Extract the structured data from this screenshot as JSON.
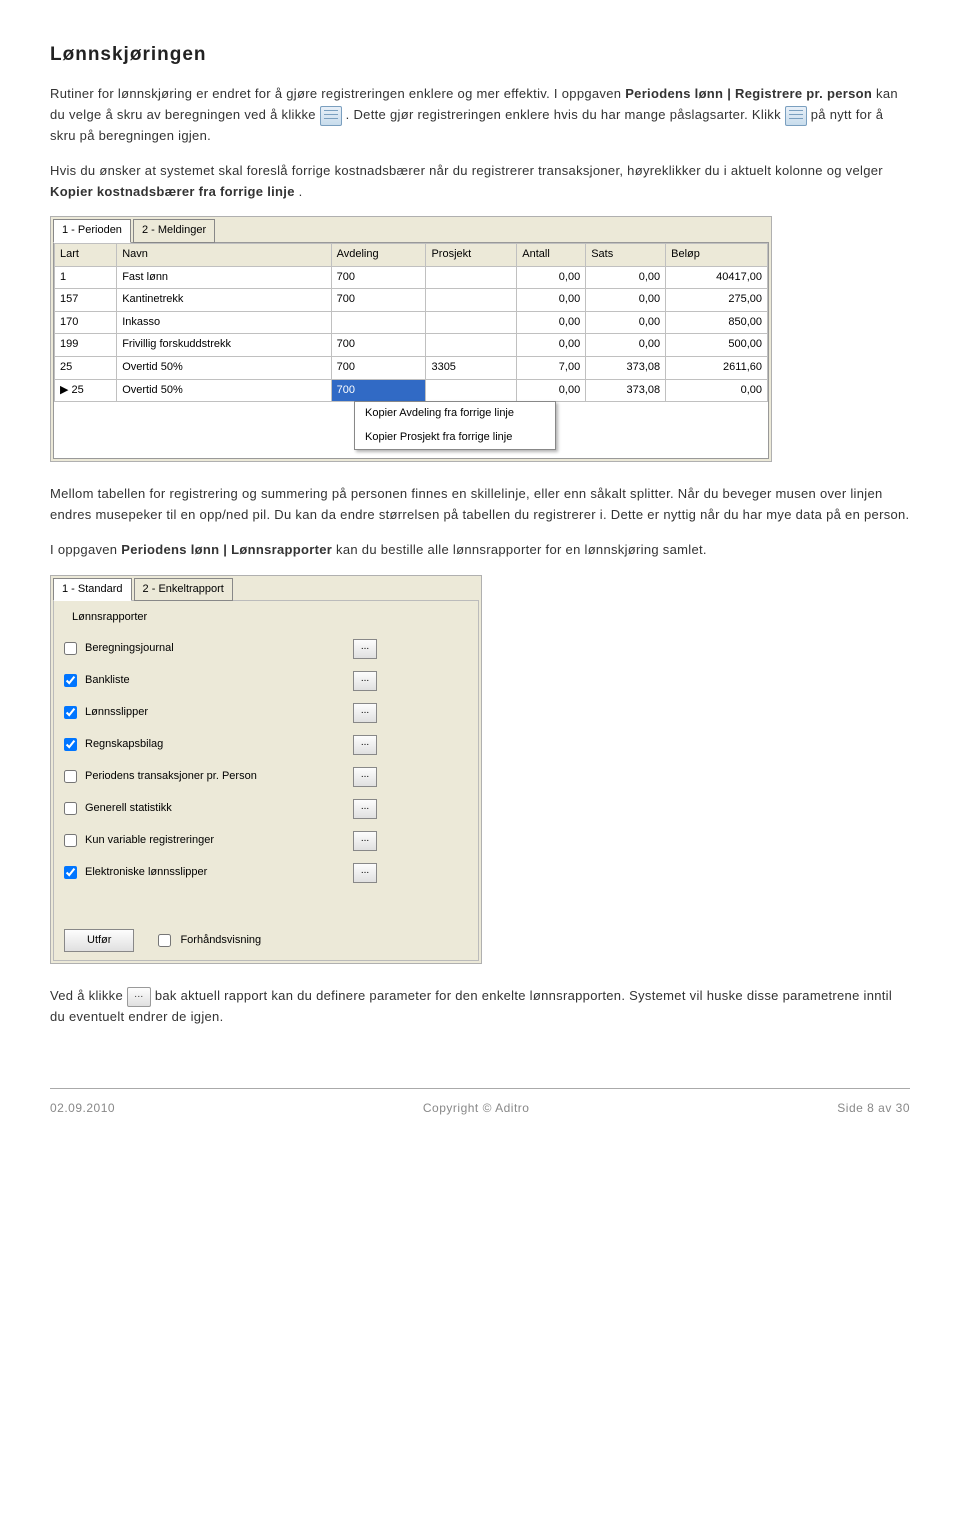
{
  "heading": "Lønnskjøringen",
  "para1_a": "Rutiner for lønnskjøring er endret for å gjøre registreringen enklere og mer effektiv. I oppgaven ",
  "para1_b": "Periodens lønn | Registrere pr. person",
  "para1_c": " kan du velge å skru av beregningen ved å klikke ",
  "para1_d": ". Dette gjør registreringen enklere hvis du har mange påslagsarter. Klikk ",
  "para1_e": " på nytt for å skru på beregningen igjen.",
  "para2_a": "Hvis du ønsker at systemet skal foreslå forrige kostnadsbærer når du registrerer transaksjoner, høyreklikker du i aktuelt kolonne og velger ",
  "para2_b": "Kopier kostnadsbærer fra forrige linje",
  "para2_c": ".",
  "table1": {
    "tabs": [
      "1 - Perioden",
      "2 - Meldinger"
    ],
    "cols": [
      "Lart",
      "Navn",
      "Avdeling",
      "Prosjekt",
      "Antall",
      "Sats",
      "Beløp"
    ],
    "rows": [
      [
        "1",
        "Fast lønn",
        "700",
        "",
        "0,00",
        "0,00",
        "40417,00"
      ],
      [
        "157",
        "Kantinetrekk",
        "700",
        "",
        "0,00",
        "0,00",
        "275,00"
      ],
      [
        "170",
        "Inkasso",
        "",
        "",
        "0,00",
        "0,00",
        "850,00"
      ],
      [
        "199",
        "Frivillig forskuddstrekk",
        "700",
        "",
        "0,00",
        "0,00",
        "500,00"
      ],
      [
        "25",
        "Overtid 50%",
        "700",
        "3305",
        "7,00",
        "373,08",
        "2611,60"
      ],
      [
        "25",
        "Overtid 50%",
        "700",
        "",
        "0,00",
        "373,08",
        "0,00"
      ]
    ],
    "context": [
      "Kopier Avdeling fra forrige linje",
      "Kopier Prosjekt fra forrige linje"
    ]
  },
  "para3": "Mellom tabellen for registrering og summering på personen finnes en skillelinje, eller enn såkalt splitter. Når du beveger musen over linjen endres musepeker til en opp/ned pil. Du kan da endre størrelsen på tabellen du registrerer i. Dette er nyttig når du har mye data på en person.",
  "para4_a": "I oppgaven ",
  "para4_b": "Periodens lønn | Lønnsrapporter",
  "para4_c": " kan du bestille alle lønnsrapporter for en lønnskjøring samlet.",
  "reports": {
    "tabs": [
      "1 - Standard",
      "2 - Enkeltrapport"
    ],
    "group": "Lønnsrapporter",
    "items": [
      {
        "label": "Beregningsjournal",
        "checked": false
      },
      {
        "label": "Bankliste",
        "checked": true
      },
      {
        "label": "Lønnsslipper",
        "checked": true
      },
      {
        "label": "Regnskapsbilag",
        "checked": true
      },
      {
        "label": "Periodens transaksjoner pr. Person",
        "checked": false
      },
      {
        "label": "Generell statistikk",
        "checked": false
      },
      {
        "label": "Kun variable registreringer",
        "checked": false
      },
      {
        "label": "Elektroniske lønnsslipper",
        "checked": true
      }
    ],
    "execute": "Utfør",
    "preview": "Forhåndsvisning"
  },
  "para5_a": "Ved å klikke ",
  "para5_b": " bak aktuell rapport kan du definere parameter for den enkelte lønnsrapporten. Systemet vil huske disse parametrene inntil du eventuelt endrer de igjen.",
  "footer": {
    "date": "02.09.2010",
    "copyright": "Copyright © Aditro",
    "page": "Side 8 av 30"
  },
  "style": {
    "highlight_color": "#ffffa8",
    "selection_color": "#316ac5",
    "window_bg": "#ece9d8"
  }
}
